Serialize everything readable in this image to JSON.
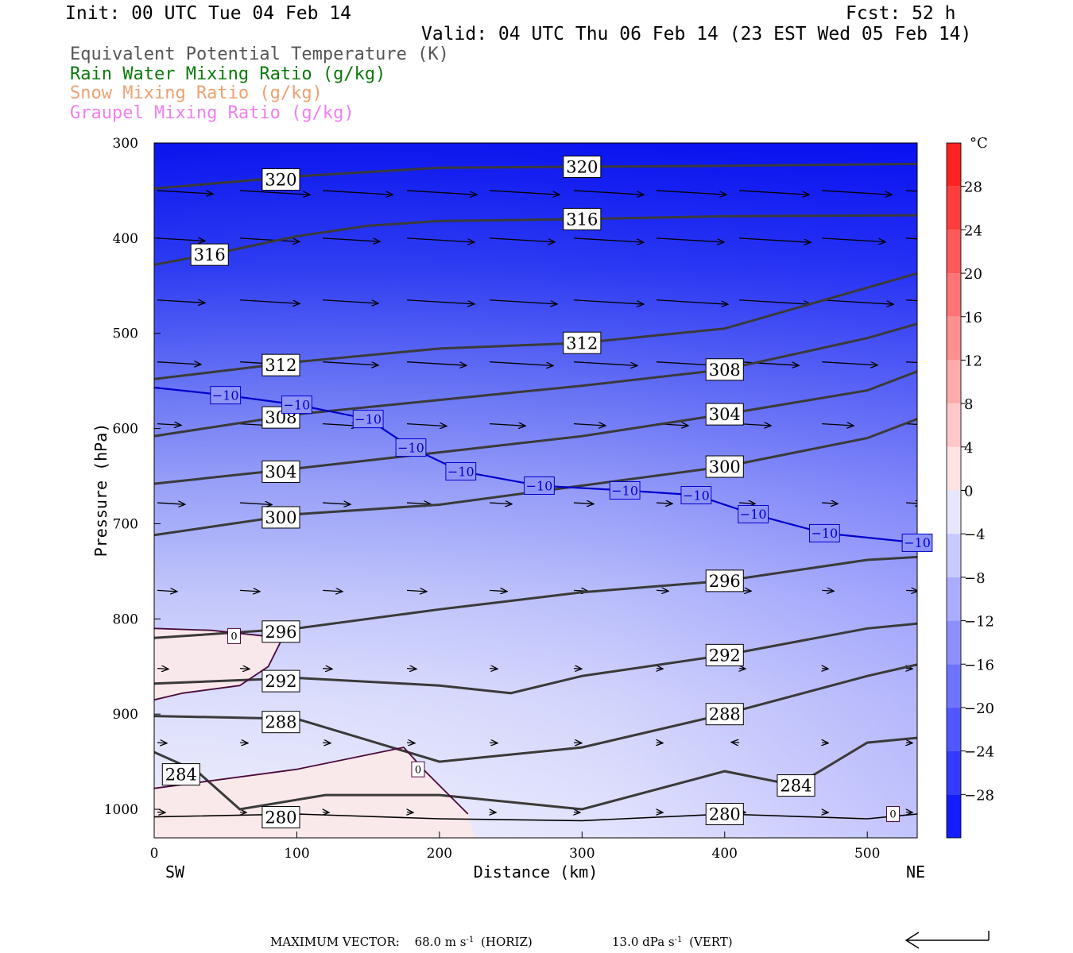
{
  "header": {
    "init": "Init: 00 UTC Tue 04 Feb 14",
    "fcst": "Fcst:   52 h",
    "valid": "Valid: 04 UTC Thu 06 Feb 14 (23 EST Wed 05 Feb 14)"
  },
  "legend": [
    {
      "text": "Equivalent Potential Temperature (K)",
      "color": "#555555"
    },
    {
      "text": "Rain Water Mixing Ratio (g/kg)",
      "color": "#0a7a0a"
    },
    {
      "text": "Snow Mixing Ratio (g/kg)",
      "color": "#f0a070"
    },
    {
      "text": "Graupel Mixing Ratio (g/kg)",
      "color": "#f07ef0"
    }
  ],
  "chart_data": {
    "type": "cross-section",
    "xlabel": "Distance (km)",
    "ylabel": "Pressure (hPa)",
    "xlim": [
      0,
      535
    ],
    "ylim": [
      1030,
      300
    ],
    "x_ticks": [
      0,
      100,
      200,
      300,
      400,
      500
    ],
    "y_ticks": [
      300,
      400,
      500,
      600,
      700,
      800,
      900,
      1000
    ],
    "x_end_labels": {
      "left": "SW",
      "right": "NE"
    },
    "colorbar": {
      "unit": "°C",
      "labels": [
        "28",
        "24",
        "20",
        "16",
        "12",
        "8",
        "4",
        "0",
        "−4",
        "−8",
        "−12",
        "−16",
        "−20",
        "−24",
        "−28"
      ],
      "levels": [
        28,
        24,
        20,
        16,
        12,
        8,
        4,
        0,
        -4,
        -8,
        -12,
        -16,
        -20,
        -24,
        -28
      ],
      "range": [
        -32,
        32
      ]
    },
    "theta_e_contours": [
      {
        "value": 320,
        "points": [
          [
            0,
            348
          ],
          [
            100,
            335
          ],
          [
            200,
            326
          ],
          [
            300,
            325
          ],
          [
            400,
            324
          ],
          [
            535,
            322
          ]
        ]
      },
      {
        "value": 316,
        "points": [
          [
            0,
            428
          ],
          [
            50,
            414
          ],
          [
            100,
            398
          ],
          [
            150,
            387
          ],
          [
            200,
            382
          ],
          [
            300,
            380
          ],
          [
            400,
            377
          ],
          [
            535,
            376
          ]
        ]
      },
      {
        "value": 312,
        "points": [
          [
            0,
            548
          ],
          [
            100,
            530
          ],
          [
            200,
            516
          ],
          [
            300,
            510
          ],
          [
            400,
            495
          ],
          [
            535,
            437
          ]
        ]
      },
      {
        "value": 308,
        "points": [
          [
            0,
            608
          ],
          [
            100,
            585
          ],
          [
            200,
            570
          ],
          [
            300,
            555
          ],
          [
            400,
            538
          ],
          [
            500,
            505
          ],
          [
            535,
            490
          ]
        ]
      },
      {
        "value": 304,
        "points": [
          [
            0,
            658
          ],
          [
            100,
            642
          ],
          [
            200,
            625
          ],
          [
            300,
            608
          ],
          [
            400,
            585
          ],
          [
            500,
            560
          ],
          [
            535,
            540
          ]
        ]
      },
      {
        "value": 300,
        "points": [
          [
            0,
            712
          ],
          [
            100,
            690
          ],
          [
            200,
            680
          ],
          [
            300,
            660
          ],
          [
            400,
            640
          ],
          [
            500,
            610
          ],
          [
            535,
            590
          ]
        ]
      },
      {
        "value": 296,
        "points": [
          [
            0,
            820
          ],
          [
            100,
            810
          ],
          [
            200,
            790
          ],
          [
            300,
            772
          ],
          [
            400,
            760
          ],
          [
            500,
            738
          ],
          [
            535,
            735
          ]
        ]
      },
      {
        "value": 292,
        "points": [
          [
            0,
            868
          ],
          [
            100,
            862
          ],
          [
            200,
            870
          ],
          [
            250,
            878
          ],
          [
            300,
            860
          ],
          [
            400,
            838
          ],
          [
            500,
            810
          ],
          [
            535,
            805
          ]
        ]
      },
      {
        "value": 288,
        "points": [
          [
            0,
            902
          ],
          [
            100,
            905
          ],
          [
            200,
            950
          ],
          [
            300,
            935
          ],
          [
            400,
            900
          ],
          [
            500,
            860
          ],
          [
            535,
            848
          ]
        ]
      },
      {
        "value": 284,
        "points": [
          [
            0,
            940
          ],
          [
            30,
            960
          ],
          [
            60,
            1000
          ],
          [
            120,
            985
          ],
          [
            200,
            985
          ],
          [
            300,
            1000
          ],
          [
            400,
            960
          ],
          [
            450,
            975
          ],
          [
            500,
            930
          ],
          [
            535,
            925
          ]
        ]
      },
      {
        "value": 280,
        "points": [
          [
            0,
            1008
          ],
          [
            100,
            1005
          ],
          [
            200,
            1010
          ],
          [
            300,
            1012
          ],
          [
            400,
            1005
          ],
          [
            500,
            1010
          ],
          [
            535,
            1005
          ]
        ]
      }
    ],
    "isotherm_minus10": {
      "value": -10,
      "points": [
        [
          0,
          557
        ],
        [
          50,
          565
        ],
        [
          100,
          575
        ],
        [
          150,
          590
        ],
        [
          180,
          620
        ],
        [
          215,
          645
        ],
        [
          270,
          660
        ],
        [
          330,
          665
        ],
        [
          380,
          670
        ],
        [
          420,
          690
        ],
        [
          470,
          710
        ],
        [
          535,
          720
        ]
      ]
    },
    "rain_water_contour": {
      "value": 0,
      "label": "0"
    },
    "maximum_vector": {
      "label": "MAXIMUM VECTOR:",
      "horiz": "68.0 m s",
      "horiz_exp": "-1",
      "horiz_unit": "(HORIZ)",
      "vert": "13.0 dPa s",
      "vert_exp": "-1",
      "vert_unit": "(VERT)"
    }
  }
}
